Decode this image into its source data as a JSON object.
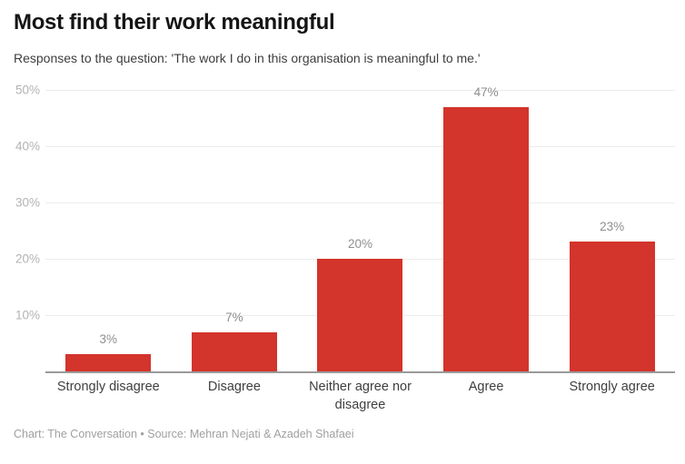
{
  "title": "Most find their work meaningful",
  "subtitle": "Responses to the question: 'The work I do in this organisation is meaningful to me.'",
  "footer": "Chart: The Conversation • Source: Mehran Nejati & Azadeh Shafaei",
  "colors": {
    "bar": "#d3342b",
    "gridline": "#ececec",
    "axis_line": "#9a9a9a",
    "tick_label": "#b3b3b3",
    "value_label": "#8e8e8e",
    "category_label": "#3f3f3f",
    "title": "#151515",
    "footer": "#a0a0a0"
  },
  "chart_data": {
    "type": "bar",
    "title": "Most find their work meaningful",
    "subtitle": "Responses to the question: 'The work I do in this organisation is meaningful to me.'",
    "categories": [
      "Strongly disagree",
      "Disagree",
      "Neither agree nor disagree",
      "Agree",
      "Strongly agree"
    ],
    "values": [
      3,
      7,
      20,
      47,
      23
    ],
    "value_labels": [
      "3%",
      "7%",
      "20%",
      "47%",
      "23%"
    ],
    "xlabel": "",
    "ylabel": "",
    "ylim": [
      0,
      50
    ],
    "yticks": [
      "50%",
      "40%",
      "30%",
      "20%",
      "10%"
    ],
    "grid": true,
    "legend": false,
    "bar_color": "#d3342b",
    "source": "Chart: The Conversation • Source: Mehran Nejati & Azadeh Shafaei"
  }
}
